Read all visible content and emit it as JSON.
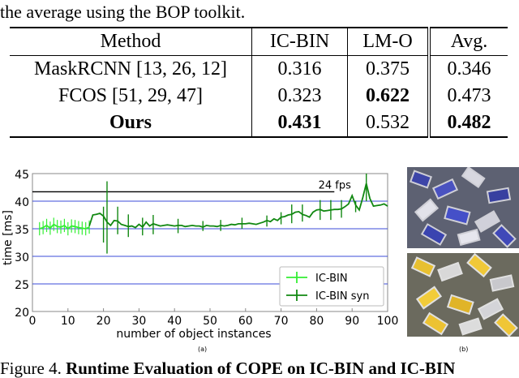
{
  "top_text": "the average using the BOP toolkit.",
  "table": {
    "headers": [
      "Method",
      "IC-BIN",
      "LM-O",
      "Avg."
    ],
    "rows": [
      {
        "method": "MaskRCNN [13, 26, 12]",
        "icbin": "0.316",
        "lmo": "0.375",
        "avg": "0.346"
      },
      {
        "method": "FCOS [51, 29, 47]",
        "icbin": "0.323",
        "lmo": "0.622",
        "avg": "0.473"
      },
      {
        "method": "Ours",
        "icbin": "0.431",
        "lmo": "0.532",
        "avg": "0.482"
      }
    ]
  },
  "chart_data": {
    "type": "line",
    "xlabel": "number of object instances",
    "ylabel": "time [ms]",
    "xlim": [
      0,
      100
    ],
    "ylim": [
      20,
      45
    ],
    "xticks": [
      "0",
      "10",
      "20",
      "30",
      "40",
      "50",
      "60",
      "70",
      "80",
      "90",
      "100"
    ],
    "yticks": [
      "20",
      "25",
      "30",
      "35",
      "40",
      "45"
    ],
    "grid": true,
    "legend": "bottom-right",
    "reference_line": {
      "y": 41.7,
      "label": "24 fps"
    },
    "series": [
      {
        "name": "IC-BIN",
        "color": "#33ee33",
        "x": [
          2,
          3,
          4,
          5,
          6,
          7,
          8,
          9,
          10,
          11,
          12,
          13,
          14,
          15,
          16
        ],
        "y": [
          35.0,
          35.2,
          35.6,
          35.1,
          35.8,
          35.4,
          35.3,
          35.6,
          35.0,
          35.5,
          35.4,
          35.2,
          35.1,
          35.0,
          35.3
        ]
      },
      {
        "name": "IC-BIN syn",
        "color": "#118811",
        "x": [
          16,
          17,
          18,
          19,
          20,
          21,
          22,
          23,
          24,
          25,
          26,
          27,
          28,
          29,
          30,
          31,
          32,
          33,
          34,
          35,
          36,
          37,
          38,
          39,
          40,
          41,
          42,
          43,
          44,
          45,
          46,
          47,
          48,
          49,
          50,
          51,
          52,
          53,
          54,
          55,
          56,
          57,
          58,
          59,
          60,
          61,
          62,
          63,
          64,
          65,
          66,
          67,
          68,
          69,
          70,
          71,
          72,
          73,
          74,
          75,
          76,
          77,
          78,
          79,
          80,
          81,
          82,
          83,
          84,
          85,
          86,
          87,
          88,
          89,
          90,
          91,
          92,
          93,
          94,
          95,
          96,
          97,
          98,
          99,
          100
        ],
        "y": [
          35.5,
          37.5,
          37.6,
          37.8,
          37.3,
          36.2,
          35.6,
          36.5,
          36.4,
          35.8,
          35.6,
          35.4,
          35.5,
          35.2,
          35.8,
          35.3,
          36.2,
          35.5,
          35.9,
          35.7,
          35.5,
          35.6,
          35.7,
          35.6,
          35.5,
          35.6,
          35.6,
          35.4,
          35.5,
          35.6,
          35.5,
          35.5,
          35.3,
          35.6,
          35.5,
          35.5,
          35.4,
          35.6,
          35.5,
          35.6,
          35.8,
          35.7,
          35.9,
          35.9,
          35.9,
          36.0,
          35.9,
          35.8,
          36.0,
          36.2,
          36.5,
          36.3,
          36.8,
          36.5,
          37.1,
          37.2,
          37.5,
          37.6,
          38.0,
          38.1,
          37.6,
          37.4,
          37.1,
          38.0,
          38.4,
          38.5,
          38.2,
          38.3,
          38.4,
          38.5,
          38.5,
          38.6,
          39.0,
          39.5,
          41.0,
          39.3,
          38.4,
          40.6,
          43.2,
          40.5,
          39.1,
          39.2,
          39.3,
          39.5,
          39.1
        ]
      },
      {
        "name": "error_bars_syn",
        "x": [
          20,
          21,
          24,
          27,
          31,
          34,
          41,
          48,
          53,
          59,
          66,
          70,
          73,
          76,
          81,
          84,
          87,
          91,
          94
        ],
        "lo": [
          32.5,
          30.5,
          34.0,
          33.5,
          33.8,
          34.0,
          34.2,
          34.6,
          34.6,
          35.0,
          35.4,
          35.8,
          36.0,
          36.3,
          36.6,
          36.6,
          37.0,
          38.0,
          40.0
        ],
        "hi": [
          39.0,
          43.6,
          39.0,
          37.6,
          37.0,
          37.5,
          36.8,
          36.4,
          36.6,
          37.0,
          37.4,
          38.0,
          39.4,
          39.4,
          40.2,
          40.2,
          40.2,
          40.0,
          45.0
        ]
      }
    ]
  },
  "chart_labels": {
    "reference_label": "24 fps",
    "legend": [
      {
        "label": "IC-BIN",
        "color": "#33ee33"
      },
      {
        "label": "IC-BIN syn",
        "color": "#118811"
      }
    ]
  },
  "subfig_a": "(a)",
  "subfig_b": "(b)",
  "caption": {
    "prefix": "Figure 4. ",
    "bold": "Runtime Evaluation of COPE on IC-BIN and IC-BIN"
  },
  "colors": {
    "grid": "#3b4bd8",
    "axes": "#888888",
    "ref_line": "#000000"
  }
}
